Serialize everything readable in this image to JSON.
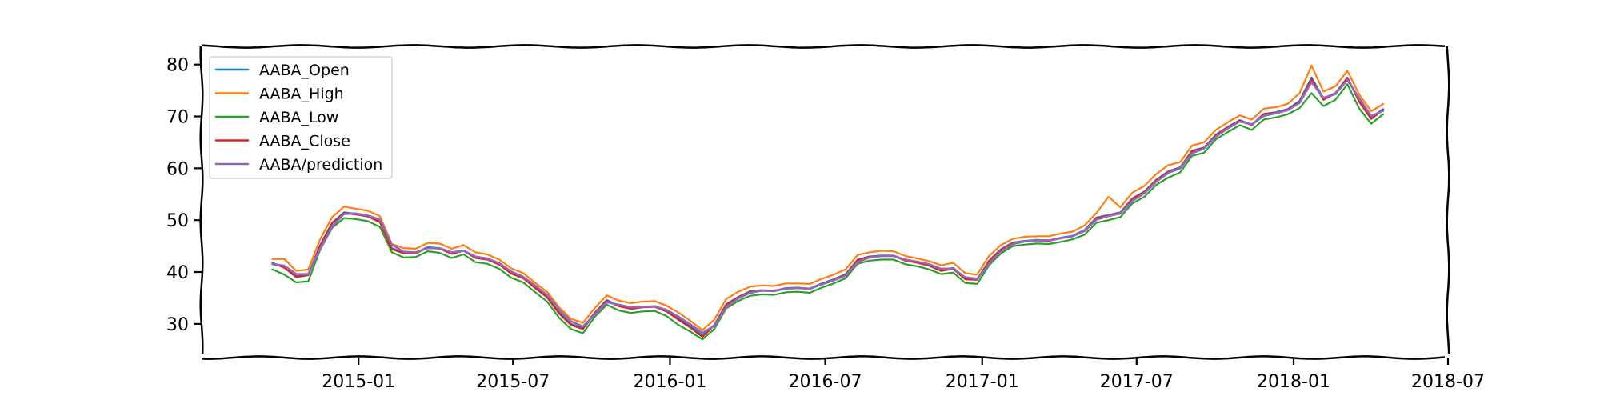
{
  "chart_data": {
    "type": "line",
    "title": "",
    "xlabel": "",
    "ylabel": "",
    "x_axis": {
      "type": "date",
      "range": [
        "2014-07-01",
        "2018-07-01"
      ],
      "ticks": [
        {
          "date": "2015-01-01",
          "label": "2015-01"
        },
        {
          "date": "2015-07-01",
          "label": "2015-07"
        },
        {
          "date": "2016-01-01",
          "label": "2016-01"
        },
        {
          "date": "2016-07-01",
          "label": "2016-07"
        },
        {
          "date": "2017-01-01",
          "label": "2017-01"
        },
        {
          "date": "2017-07-01",
          "label": "2017-07"
        },
        {
          "date": "2018-01-01",
          "label": "2018-01"
        },
        {
          "date": "2018-07-01",
          "label": "2018-07"
        }
      ]
    },
    "y_axis": {
      "range": [
        23.5,
        83.5
      ],
      "ticks": [
        30,
        40,
        50,
        60,
        70,
        80
      ]
    },
    "grid": false,
    "legend_position": "top-left",
    "series_colors": {
      "AABA_Open": "#1f77b4",
      "AABA_High": "#ff7f0e",
      "AABA_Low": "#2ca02c",
      "AABA_Close": "#d62728",
      "AABA/prediction": "#9467bd"
    },
    "series_order": [
      "AABA_Open",
      "AABA_High",
      "AABA_Low",
      "AABA_Close",
      "AABA/prediction"
    ],
    "x": [
      "2014-09-22",
      "2014-10-06",
      "2014-10-20",
      "2014-11-03",
      "2014-11-17",
      "2014-12-01",
      "2014-12-15",
      "2014-12-29",
      "2015-01-12",
      "2015-01-26",
      "2015-02-09",
      "2015-02-23",
      "2015-03-09",
      "2015-03-23",
      "2015-04-06",
      "2015-04-20",
      "2015-05-04",
      "2015-05-18",
      "2015-06-01",
      "2015-06-15",
      "2015-06-29",
      "2015-07-13",
      "2015-07-27",
      "2015-08-10",
      "2015-08-24",
      "2015-09-07",
      "2015-09-21",
      "2015-10-05",
      "2015-10-19",
      "2015-11-02",
      "2015-11-16",
      "2015-11-30",
      "2015-12-14",
      "2015-12-28",
      "2016-01-11",
      "2016-01-25",
      "2016-02-08",
      "2016-02-22",
      "2016-03-07",
      "2016-03-21",
      "2016-04-04",
      "2016-04-18",
      "2016-05-02",
      "2016-05-16",
      "2016-05-30",
      "2016-06-13",
      "2016-06-27",
      "2016-07-11",
      "2016-07-25",
      "2016-08-08",
      "2016-08-22",
      "2016-09-05",
      "2016-09-19",
      "2016-10-03",
      "2016-10-17",
      "2016-10-31",
      "2016-11-14",
      "2016-11-28",
      "2016-12-12",
      "2016-12-26",
      "2017-01-09",
      "2017-01-23",
      "2017-02-06",
      "2017-02-20",
      "2017-03-06",
      "2017-03-20",
      "2017-04-03",
      "2017-04-17",
      "2017-05-01",
      "2017-05-15",
      "2017-05-29",
      "2017-06-12",
      "2017-06-26",
      "2017-07-10",
      "2017-07-24",
      "2017-08-07",
      "2017-08-21",
      "2017-09-04",
      "2017-09-18",
      "2017-10-02",
      "2017-10-16",
      "2017-10-30",
      "2017-11-13",
      "2017-11-27",
      "2017-12-11",
      "2017-12-25",
      "2018-01-08",
      "2018-01-22",
      "2018-02-05",
      "2018-02-19",
      "2018-03-05",
      "2018-03-19",
      "2018-04-02",
      "2018-04-16"
    ],
    "series": [
      {
        "name": "AABA_Open",
        "values": [
          41.5,
          41.0,
          39.2,
          39.5,
          45.2,
          49.5,
          51.5,
          51.2,
          50.8,
          49.8,
          44.6,
          43.7,
          43.7,
          44.8,
          44.6,
          43.6,
          44.2,
          42.8,
          42.5,
          41.5,
          39.8,
          38.9,
          37.0,
          35.2,
          32.2,
          30.0,
          29.2,
          32.2,
          34.6,
          33.5,
          33.0,
          33.3,
          33.4,
          32.5,
          31.1,
          29.5,
          27.8,
          29.8,
          33.8,
          35.2,
          36.3,
          36.5,
          36.4,
          36.9,
          37.0,
          36.8,
          37.8,
          38.6,
          39.6,
          42.4,
          43.0,
          43.2,
          43.2,
          42.3,
          41.9,
          41.3,
          40.4,
          40.8,
          38.8,
          38.6,
          42.2,
          44.4,
          45.7,
          46.0,
          46.2,
          46.1,
          46.6,
          47.0,
          48.1,
          50.5,
          51.0,
          51.5,
          54.2,
          55.5,
          57.8,
          59.4,
          60.2,
          63.4,
          64.0,
          66.5,
          68.0,
          69.3,
          68.4,
          70.5,
          70.8,
          71.4,
          73.0,
          77.5,
          73.5,
          74.5,
          77.5,
          73.0,
          69.8,
          71.4
        ]
      },
      {
        "name": "AABA_High",
        "values": [
          42.5,
          42.5,
          40.2,
          40.5,
          46.3,
          50.6,
          52.6,
          52.2,
          51.8,
          50.8,
          45.4,
          44.6,
          44.5,
          45.6,
          45.5,
          44.5,
          45.2,
          43.8,
          43.4,
          42.4,
          40.7,
          39.8,
          37.9,
          36.2,
          33.2,
          31.0,
          30.2,
          33.1,
          35.5,
          34.5,
          34.0,
          34.3,
          34.4,
          33.5,
          32.2,
          30.6,
          28.8,
          30.8,
          34.8,
          36.2,
          37.2,
          37.4,
          37.3,
          37.8,
          37.8,
          37.7,
          38.7,
          39.5,
          40.5,
          43.3,
          43.8,
          44.1,
          44.0,
          43.1,
          42.6,
          42.1,
          41.3,
          41.8,
          39.8,
          39.5,
          43.1,
          45.2,
          46.4,
          46.8,
          46.9,
          46.9,
          47.4,
          47.8,
          49.0,
          51.4,
          54.5,
          52.5,
          55.3,
          56.6,
          58.9,
          60.6,
          61.2,
          64.4,
          65.0,
          67.4,
          68.9,
          70.2,
          69.4,
          71.5,
          71.8,
          72.4,
          74.5,
          79.8,
          74.8,
          75.8,
          78.8,
          74.2,
          71.0,
          72.4
        ]
      },
      {
        "name": "AABA_Low",
        "values": [
          40.5,
          39.5,
          38.0,
          38.2,
          44.3,
          48.5,
          50.4,
          50.2,
          49.8,
          48.7,
          43.8,
          42.8,
          42.9,
          44.0,
          43.7,
          42.7,
          43.4,
          41.9,
          41.6,
          40.6,
          38.9,
          38.0,
          36.1,
          34.3,
          31.2,
          29.0,
          28.2,
          31.4,
          33.7,
          32.6,
          32.1,
          32.4,
          32.5,
          31.5,
          29.8,
          28.5,
          27.0,
          29.0,
          33.0,
          34.4,
          35.4,
          35.7,
          35.6,
          36.1,
          36.2,
          36.0,
          37.0,
          37.8,
          38.8,
          41.6,
          42.2,
          42.4,
          42.4,
          41.5,
          41.1,
          40.5,
          39.6,
          39.9,
          37.9,
          37.7,
          41.3,
          43.6,
          45.0,
          45.3,
          45.5,
          45.4,
          45.8,
          46.3,
          47.2,
          49.5,
          50.0,
          50.6,
          53.2,
          54.5,
          56.8,
          58.2,
          59.2,
          62.4,
          63.0,
          65.6,
          67.0,
          68.3,
          67.4,
          69.4,
          69.8,
          70.4,
          71.6,
          74.5,
          72.0,
          73.2,
          76.2,
          71.5,
          68.6,
          70.4
        ]
      },
      {
        "name": "AABA_Close",
        "values": [
          41.8,
          40.8,
          39.0,
          39.4,
          45.0,
          49.4,
          51.4,
          51.1,
          50.7,
          49.6,
          44.4,
          43.6,
          43.6,
          44.7,
          44.5,
          43.5,
          44.1,
          42.7,
          42.4,
          41.4,
          39.7,
          38.8,
          36.9,
          35.1,
          32.0,
          29.8,
          29.0,
          32.1,
          34.5,
          33.4,
          32.9,
          33.2,
          33.3,
          32.4,
          30.8,
          29.3,
          27.5,
          29.7,
          33.7,
          35.1,
          36.2,
          36.4,
          36.3,
          36.8,
          36.9,
          36.7,
          37.7,
          38.5,
          39.5,
          42.3,
          42.9,
          43.1,
          43.1,
          42.2,
          41.8,
          41.2,
          40.2,
          40.6,
          38.6,
          38.5,
          42.1,
          44.3,
          45.6,
          45.9,
          46.1,
          46.0,
          46.5,
          46.9,
          48.0,
          50.4,
          50.9,
          51.4,
          54.1,
          55.4,
          57.7,
          59.3,
          60.1,
          63.3,
          63.9,
          66.4,
          67.9,
          69.2,
          68.3,
          70.4,
          70.7,
          71.3,
          72.8,
          77.2,
          73.2,
          74.4,
          77.4,
          72.8,
          69.5,
          71.3
        ]
      },
      {
        "name": "AABA/prediction",
        "values": [
          41.6,
          41.2,
          39.6,
          39.6,
          44.5,
          48.8,
          51.2,
          51.3,
          50.9,
          50.1,
          45.3,
          43.9,
          43.8,
          44.6,
          44.6,
          43.8,
          44.1,
          43.0,
          42.6,
          41.7,
          40.1,
          39.1,
          37.4,
          35.6,
          32.7,
          30.5,
          29.5,
          31.8,
          34.2,
          33.7,
          33.2,
          33.3,
          33.4,
          32.7,
          31.4,
          29.9,
          28.3,
          29.6,
          33.2,
          34.9,
          36.0,
          36.4,
          36.4,
          36.8,
          36.9,
          36.8,
          37.6,
          38.4,
          39.3,
          41.9,
          42.8,
          43.1,
          43.1,
          42.4,
          42.0,
          41.5,
          40.6,
          40.7,
          39.0,
          38.7,
          41.6,
          44.0,
          45.4,
          45.9,
          46.1,
          46.1,
          46.5,
          46.9,
          47.9,
          50.1,
          50.8,
          51.3,
          53.7,
          55.2,
          57.4,
          59.1,
          60.0,
          62.9,
          63.8,
          66.1,
          67.7,
          69.0,
          68.5,
          70.1,
          70.6,
          71.2,
          72.6,
          76.6,
          73.6,
          74.3,
          77.0,
          73.5,
          70.1,
          71.1
        ]
      }
    ]
  }
}
